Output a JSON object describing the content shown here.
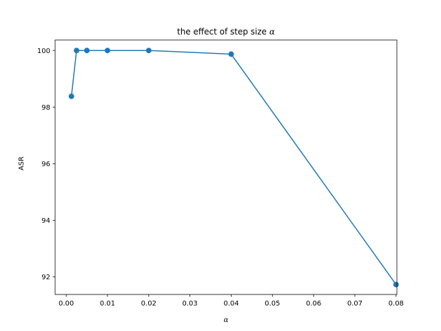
{
  "chart_data": {
    "type": "line",
    "title": "the effect of step size",
    "title_symbol": "α",
    "xlabel": "α",
    "ylabel": "ASR",
    "xlim": [
      -0.0027,
      0.0802
    ],
    "ylim": [
      91.38,
      100.37
    ],
    "xticks": [
      "0.00",
      "0.01",
      "0.02",
      "0.03",
      "0.04",
      "0.05",
      "0.06",
      "0.07",
      "0.08"
    ],
    "xtick_values": [
      0.0,
      0.01,
      0.02,
      0.03,
      0.04,
      0.05,
      0.06,
      0.07,
      0.08
    ],
    "yticks": [
      "92",
      "94",
      "96",
      "98",
      "100"
    ],
    "ytick_values": [
      92,
      94,
      96,
      98,
      100
    ],
    "grid": false,
    "series": [
      {
        "color": "#1f77b4",
        "marker": "circle",
        "x": [
          0.00125,
          0.0025,
          0.005,
          0.01,
          0.02,
          0.04,
          0.08
        ],
        "y": [
          98.38,
          100.0,
          100.0,
          100.0,
          100.0,
          99.87,
          91.73
        ]
      }
    ]
  }
}
